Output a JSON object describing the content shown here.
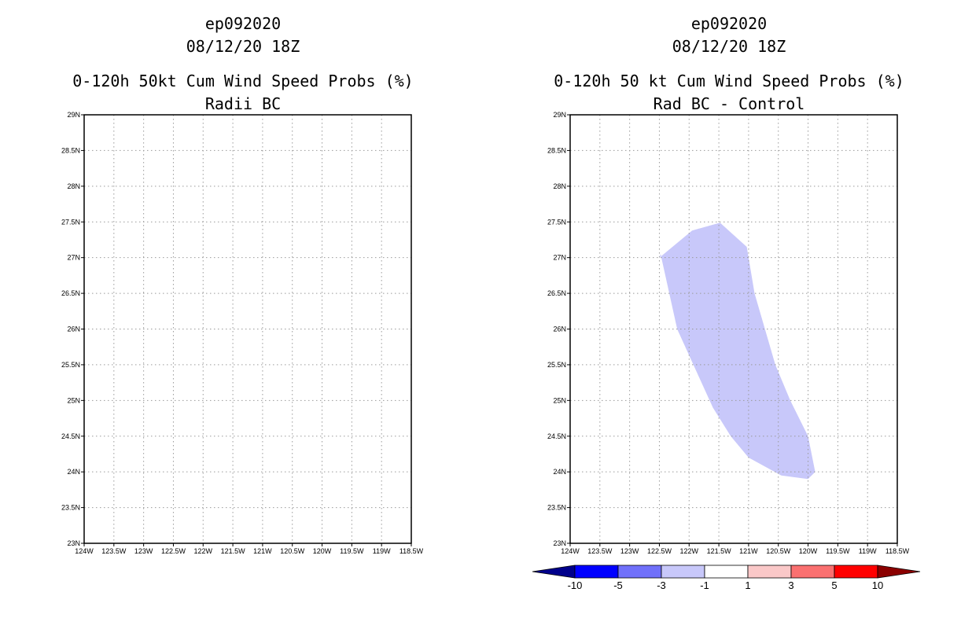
{
  "chart_data": [
    {
      "type": "map",
      "title_lines": [
        "ep092020",
        "08/12/20 18Z",
        "0-120h 50kt Cum Wind Speed Probs (%)",
        "Radii BC"
      ],
      "x_ticks": [
        "124W",
        "123.5W",
        "123W",
        "122.5W",
        "122W",
        "121.5W",
        "121W",
        "120.5W",
        "120W",
        "119.5W",
        "119W",
        "118.5W"
      ],
      "y_ticks": [
        "29N",
        "28.5N",
        "28N",
        "27.5N",
        "27N",
        "26.5N",
        "26N",
        "25.5N",
        "25N",
        "24.5N",
        "24N",
        "23.5N",
        "23N"
      ],
      "lon_range": [
        -124,
        -118.5
      ],
      "lat_range": [
        23,
        29
      ],
      "grid": true,
      "shaded_regions": []
    },
    {
      "type": "map",
      "title_lines": [
        "ep092020",
        "08/12/20 18Z",
        "0-120h 50 kt Cum Wind Speed Probs (%)",
        "Rad BC - Control"
      ],
      "x_ticks": [
        "124W",
        "123.5W",
        "123W",
        "122.5W",
        "122W",
        "121.5W",
        "121W",
        "120.5W",
        "120W",
        "119.5W",
        "119W",
        "118.5W"
      ],
      "y_ticks": [
        "29N",
        "28.5N",
        "28N",
        "27.5N",
        "27N",
        "26.5N",
        "26N",
        "25.5N",
        "25N",
        "24.5N",
        "24N",
        "23.5N",
        "23N"
      ],
      "lon_range": [
        -124,
        -118.5
      ],
      "lat_range": [
        23,
        29
      ],
      "grid": true,
      "shaded_regions": [
        {
          "category": "-3 to -1",
          "color": "#c8c8fa",
          "polygon_lonlat": [
            [
              -122.5,
              27.0
            ],
            [
              -121.95,
              27.38
            ],
            [
              -121.48,
              27.49
            ],
            [
              -121.03,
              27.15
            ],
            [
              -120.9,
              26.5
            ],
            [
              -120.55,
              25.5
            ],
            [
              -120.3,
              25.0
            ],
            [
              -120.0,
              24.5
            ],
            [
              -119.88,
              24.0
            ],
            [
              -120.0,
              23.9
            ],
            [
              -120.45,
              23.95
            ],
            [
              -121.0,
              24.2
            ],
            [
              -121.3,
              24.5
            ],
            [
              -121.6,
              24.9
            ],
            [
              -122.2,
              26.0
            ],
            [
              -122.48,
              27.05
            ]
          ]
        }
      ],
      "colorbar": {
        "labels": [
          "-10",
          "-5",
          "-3",
          "-1",
          "1",
          "3",
          "5",
          "10"
        ],
        "colors": [
          "#00008b",
          "#0000ff",
          "#7070fa",
          "#c8c8fa",
          "#ffffff",
          "#fac8c8",
          "#fa7070",
          "#ff0000",
          "#8b0000"
        ]
      }
    }
  ]
}
